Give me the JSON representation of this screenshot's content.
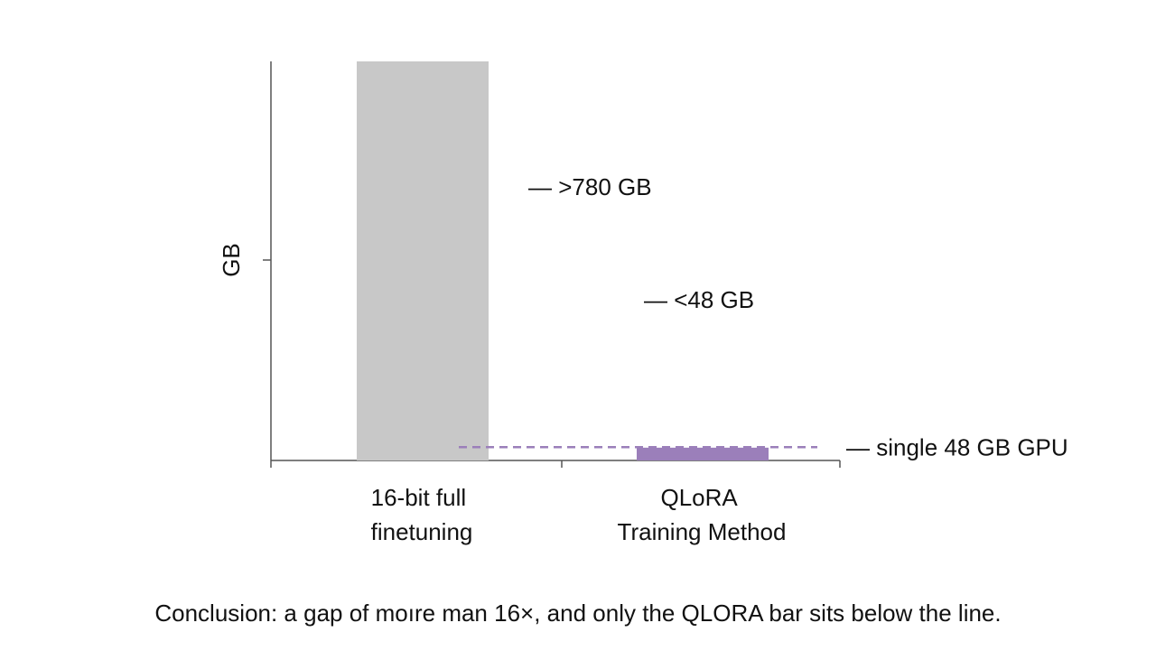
{
  "chart_data": {
    "type": "bar",
    "title": "",
    "xlabel": "",
    "ylabel": "GB",
    "categories": [
      [
        "16-bit full",
        "finetuning"
      ],
      [
        "QLoRA",
        "Training Method"
      ]
    ],
    "values": [
      780,
      25
    ],
    "value_labels": [
      "— >780 GB",
      "— <48 GB"
    ],
    "ylim": [
      0,
      780
    ],
    "reference_line": {
      "value": 26,
      "label": "— single 48 GB GPU",
      "color": "#9b7fba",
      "style": "dashed"
    },
    "colors": {
      "bar_full": "#c8c8c8",
      "bar_qlora": "#9b7fba",
      "axis": "#555555",
      "text": "#111111"
    },
    "grid": false
  },
  "footer": {
    "conclusion": "Conclusion: a gap of moıre man 16×, and only the QLORA bar sits below the line."
  }
}
